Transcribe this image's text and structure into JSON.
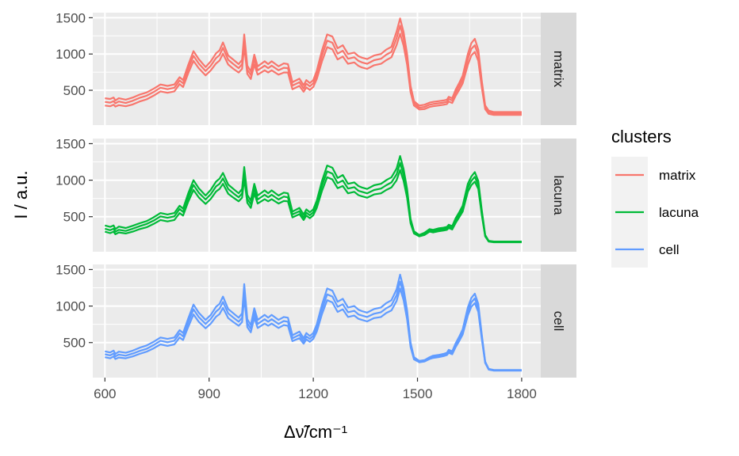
{
  "chart_data": {
    "type": "line",
    "facets": [
      "matrix",
      "lacuna",
      "cell"
    ],
    "xlabel": "Δν̃/cm⁻¹",
    "ylabel": "I / a.u.",
    "xlim": [
      565,
      1855
    ],
    "ylim": [
      20,
      1570
    ],
    "x_ticks": [
      600,
      900,
      1200,
      1500,
      1800
    ],
    "x_tick_labels": [
      "600",
      "900",
      "1200",
      "1500",
      "1800"
    ],
    "y_ticks": [
      500,
      1000,
      1500
    ],
    "y_tick_labels": [
      "500",
      "1000",
      "1500"
    ],
    "grid": true,
    "legend": {
      "title": "clusters",
      "position": "right",
      "entries": [
        {
          "label": "matrix",
          "color": "#F8766D"
        },
        {
          "label": "lacuna",
          "color": "#00BA38"
        },
        {
          "label": "cell",
          "color": "#619CFF"
        }
      ]
    },
    "x": [
      600,
      615,
      625,
      630,
      640,
      660,
      680,
      700,
      720,
      740,
      760,
      780,
      800,
      815,
      825,
      840,
      855,
      870,
      890,
      905,
      920,
      930,
      940,
      955,
      970,
      985,
      995,
      1001,
      1010,
      1020,
      1030,
      1040,
      1060,
      1070,
      1080,
      1100,
      1115,
      1127,
      1140,
      1160,
      1172,
      1180,
      1190,
      1200,
      1210,
      1225,
      1240,
      1255,
      1270,
      1285,
      1300,
      1318,
      1330,
      1340,
      1355,
      1375,
      1395,
      1410,
      1425,
      1440,
      1450,
      1460,
      1470,
      1480,
      1490,
      1505,
      1520,
      1535,
      1545,
      1560,
      1575,
      1585,
      1590,
      1600,
      1610,
      1620,
      1630,
      1645,
      1655,
      1665,
      1675,
      1685,
      1695,
      1705,
      1720,
      1740,
      1760,
      1780,
      1800
    ],
    "series": [
      {
        "panel": "matrix",
        "color": "#F8766D",
        "values": [
          390,
          380,
          400,
          360,
          390,
          370,
          400,
          440,
          470,
          520,
          580,
          560,
          580,
          680,
          640,
          850,
          1040,
          930,
          820,
          900,
          1010,
          1050,
          1160,
          980,
          920,
          860,
          920,
          1270,
          840,
          760,
          990,
          830,
          900,
          860,
          900,
          830,
          870,
          860,
          610,
          660,
          570,
          640,
          600,
          640,
          770,
          1050,
          1270,
          1240,
          1080,
          1120,
          1000,
          1020,
          970,
          950,
          930,
          980,
          1000,
          1060,
          1100,
          1310,
          1490,
          1300,
          1000,
          560,
          350,
          290,
          300,
          330,
          340,
          350,
          360,
          370,
          410,
          390,
          510,
          600,
          700,
          1000,
          1150,
          1210,
          1060,
          640,
          290,
          220,
          200,
          200,
          200,
          200,
          200
        ]
      },
      {
        "panel": "matrix",
        "color": "#F8766D",
        "values": [
          340,
          330,
          350,
          320,
          345,
          325,
          355,
          395,
          425,
          475,
          535,
          515,
          535,
          635,
          595,
          795,
          975,
          870,
          765,
          840,
          945,
          985,
          1085,
          920,
          860,
          805,
          860,
          1190,
          785,
          710,
          925,
          775,
          840,
          805,
          840,
          775,
          810,
          805,
          565,
          610,
          525,
          590,
          555,
          595,
          715,
          980,
          1185,
          1155,
          1005,
          1045,
          935,
          955,
          905,
          885,
          865,
          915,
          935,
          990,
          1030,
          1220,
          1390,
          1210,
          930,
          520,
          320,
          260,
          270,
          300,
          310,
          320,
          330,
          340,
          380,
          360,
          470,
          555,
          650,
          930,
          1070,
          1120,
          985,
          595,
          265,
          200,
          180,
          180,
          180,
          180,
          180
        ]
      },
      {
        "panel": "matrix",
        "color": "#F8766D",
        "values": [
          290,
          280,
          300,
          275,
          295,
          280,
          305,
          345,
          375,
          425,
          485,
          465,
          485,
          585,
          545,
          735,
          905,
          805,
          705,
          775,
          870,
          910,
          1005,
          855,
          795,
          745,
          795,
          1105,
          725,
          655,
          855,
          715,
          775,
          745,
          775,
          715,
          745,
          745,
          515,
          560,
          480,
          540,
          505,
          545,
          655,
          900,
          1095,
          1065,
          925,
          965,
          865,
          885,
          835,
          815,
          795,
          845,
          865,
          915,
          955,
          1125,
          1280,
          1115,
          855,
          475,
          290,
          235,
          240,
          270,
          280,
          290,
          300,
          310,
          345,
          325,
          425,
          505,
          595,
          850,
          980,
          1030,
          905,
          545,
          240,
          175,
          160,
          160,
          160,
          160,
          160
        ]
      },
      {
        "panel": "lacuna",
        "color": "#00BA38",
        "values": [
          380,
          360,
          380,
          330,
          365,
          345,
          375,
          410,
          440,
          490,
          550,
          530,
          550,
          650,
          610,
          820,
          1000,
          890,
          790,
          870,
          980,
          1020,
          1100,
          940,
          880,
          820,
          880,
          1180,
          800,
          720,
          950,
          790,
          860,
          820,
          860,
          790,
          830,
          820,
          570,
          620,
          530,
          600,
          560,
          600,
          720,
          990,
          1200,
          1170,
          1030,
          1070,
          950,
          970,
          920,
          900,
          880,
          930,
          950,
          1000,
          1040,
          1160,
          1330,
          1150,
          880,
          470,
          300,
          250,
          280,
          330,
          320,
          340,
          350,
          360,
          390,
          370,
          480,
          560,
          650,
          950,
          1050,
          1110,
          990,
          600,
          250,
          170,
          160,
          160,
          160,
          160,
          160
        ]
      },
      {
        "panel": "lacuna",
        "color": "#00BA38",
        "values": [
          335,
          315,
          335,
          295,
          320,
          305,
          335,
          370,
          400,
          445,
          505,
          485,
          505,
          605,
          565,
          765,
          935,
          830,
          735,
          810,
          915,
          950,
          1025,
          880,
          820,
          765,
          820,
          1105,
          745,
          670,
          885,
          735,
          800,
          765,
          800,
          735,
          775,
          765,
          530,
          575,
          490,
          555,
          520,
          560,
          670,
          925,
          1120,
          1090,
          960,
          995,
          885,
          905,
          855,
          840,
          820,
          865,
          885,
          930,
          970,
          1080,
          1235,
          1070,
          820,
          440,
          285,
          240,
          265,
          310,
          300,
          320,
          330,
          340,
          365,
          345,
          445,
          525,
          610,
          895,
          990,
          1045,
          935,
          565,
          240,
          165,
          155,
          155,
          155,
          155,
          155
        ]
      },
      {
        "panel": "lacuna",
        "color": "#00BA38",
        "values": [
          295,
          275,
          295,
          260,
          285,
          270,
          295,
          330,
          355,
          400,
          455,
          435,
          455,
          550,
          515,
          705,
          865,
          765,
          675,
          745,
          845,
          880,
          950,
          815,
          760,
          710,
          760,
          1025,
          690,
          620,
          820,
          680,
          740,
          710,
          740,
          680,
          715,
          710,
          490,
          535,
          455,
          515,
          480,
          520,
          620,
          855,
          1040,
          1010,
          890,
          920,
          820,
          840,
          795,
          780,
          760,
          805,
          820,
          865,
          900,
          1000,
          1140,
          990,
          760,
          410,
          270,
          230,
          250,
          295,
          285,
          300,
          310,
          320,
          345,
          325,
          415,
          490,
          570,
          840,
          930,
          980,
          880,
          530,
          230,
          160,
          150,
          150,
          150,
          150,
          150
        ]
      },
      {
        "panel": "cell",
        "color": "#619CFF",
        "values": [
          380,
          365,
          390,
          345,
          375,
          360,
          390,
          430,
          460,
          510,
          570,
          550,
          570,
          670,
          630,
          830,
          1020,
          910,
          810,
          880,
          990,
          1030,
          1130,
          960,
          900,
          840,
          900,
          1300,
          820,
          740,
          970,
          810,
          880,
          840,
          880,
          810,
          850,
          840,
          600,
          650,
          560,
          630,
          590,
          630,
          750,
          1020,
          1240,
          1210,
          1060,
          1100,
          980,
          1000,
          950,
          930,
          910,
          960,
          980,
          1040,
          1080,
          1230,
          1430,
          1240,
          940,
          500,
          300,
          250,
          260,
          300,
          320,
          330,
          345,
          360,
          400,
          380,
          490,
          580,
          680,
          980,
          1110,
          1170,
          1030,
          620,
          240,
          140,
          125,
          125,
          125,
          125,
          125
        ]
      },
      {
        "panel": "cell",
        "color": "#619CFF",
        "values": [
          340,
          325,
          350,
          310,
          335,
          320,
          350,
          385,
          415,
          465,
          525,
          505,
          525,
          625,
          585,
          775,
          955,
          850,
          755,
          825,
          925,
          965,
          1055,
          900,
          840,
          785,
          840,
          1210,
          765,
          690,
          905,
          755,
          820,
          785,
          820,
          755,
          795,
          785,
          560,
          605,
          520,
          585,
          550,
          590,
          700,
          955,
          1160,
          1130,
          990,
          1025,
          915,
          935,
          885,
          870,
          850,
          895,
          915,
          970,
          1010,
          1150,
          1335,
          1160,
          880,
          470,
          285,
          240,
          250,
          285,
          305,
          315,
          330,
          345,
          380,
          360,
          465,
          550,
          645,
          925,
          1050,
          1105,
          975,
          590,
          230,
          135,
          120,
          120,
          120,
          120,
          120
        ]
      },
      {
        "panel": "cell",
        "color": "#619CFF",
        "values": [
          300,
          285,
          310,
          275,
          295,
          285,
          310,
          345,
          375,
          420,
          475,
          455,
          475,
          570,
          535,
          715,
          885,
          785,
          695,
          760,
          855,
          890,
          975,
          835,
          780,
          730,
          780,
          1120,
          710,
          640,
          840,
          700,
          760,
          730,
          760,
          700,
          740,
          730,
          520,
          560,
          485,
          545,
          510,
          550,
          650,
          890,
          1080,
          1050,
          920,
          955,
          850,
          870,
          825,
          810,
          790,
          835,
          850,
          905,
          940,
          1070,
          1240,
          1080,
          820,
          440,
          270,
          230,
          240,
          275,
          290,
          300,
          315,
          330,
          360,
          340,
          440,
          520,
          610,
          870,
          990,
          1040,
          920,
          555,
          220,
          130,
          115,
          115,
          115,
          115,
          115
        ]
      }
    ]
  }
}
